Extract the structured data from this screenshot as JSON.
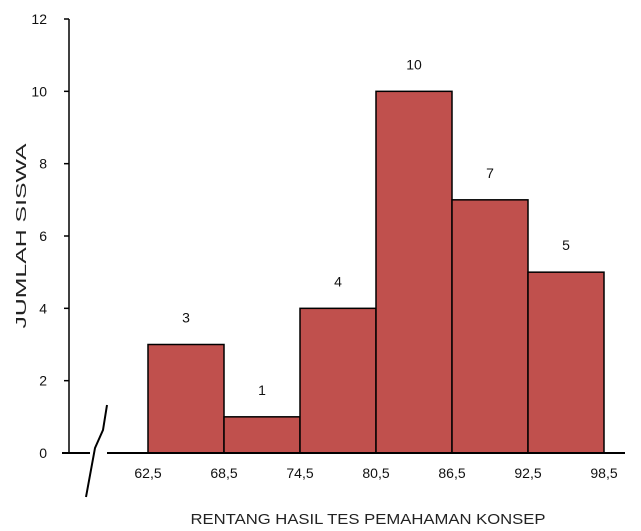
{
  "chart_data": {
    "type": "bar",
    "title": "",
    "xlabel": "RENTANG HASIL TES PEMAHAMAN KONSEP",
    "ylabel": "JUMLAH SISWA",
    "ylim": [
      0,
      12
    ],
    "yticks": [
      "0",
      "2",
      "4",
      "6",
      "8",
      "10",
      "12"
    ],
    "bin_edges": [
      "62,5",
      "68,5",
      "74,5",
      "80,5",
      "86,5",
      "92,5",
      "98,5"
    ],
    "values": [
      3,
      1,
      4,
      10,
      7,
      5
    ],
    "data_labels": [
      "3",
      "1",
      "4",
      "10",
      "7",
      "5"
    ],
    "bar_color": "#c0504d",
    "bar_edge_color": "#000000",
    "grid": false,
    "legend": "none"
  }
}
